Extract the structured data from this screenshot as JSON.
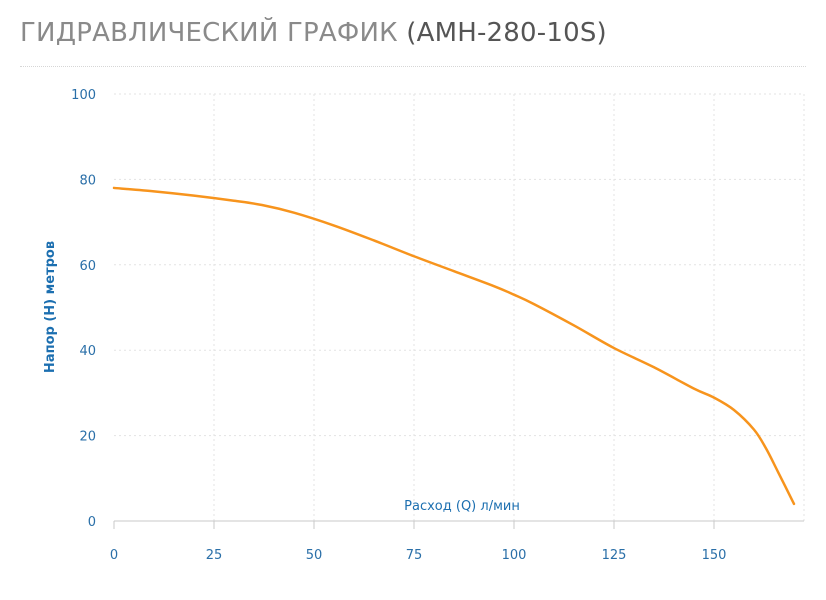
{
  "page": {
    "title_main": "ГИДРАВЛИЧЕСКИЙ ГРАФИК",
    "title_model": "(AMH-280-10S)"
  },
  "colors": {
    "line": "#f7941d",
    "axis_text": "#2a6fa8",
    "grid": "#e3e3e3",
    "title": "#8a8a8a"
  },
  "chart_data": {
    "type": "line",
    "title": "",
    "xlabel": "Расход (Q) л/мин",
    "ylabel": "Напор (H) метров",
    "xlim": [
      0,
      172
    ],
    "ylim": [
      0,
      100
    ],
    "xticks": [
      0,
      25,
      50,
      75,
      100,
      125,
      150
    ],
    "yticks": [
      0,
      20,
      40,
      60,
      80,
      100
    ],
    "grid": true,
    "series": [
      {
        "x": [
          0,
          10,
          20,
          30,
          37,
          45,
          55,
          65,
          75,
          85,
          95,
          100,
          105,
          115,
          125,
          135,
          145,
          150,
          155,
          160,
          163,
          166,
          170
        ],
        "y": [
          78,
          77.2,
          76.2,
          75,
          74,
          72.2,
          69.2,
          65.7,
          62,
          58.5,
          55,
          53,
          50.8,
          45.8,
          40.5,
          36,
          31,
          28.9,
          26,
          21.4,
          17,
          11.5,
          4
        ]
      }
    ]
  }
}
